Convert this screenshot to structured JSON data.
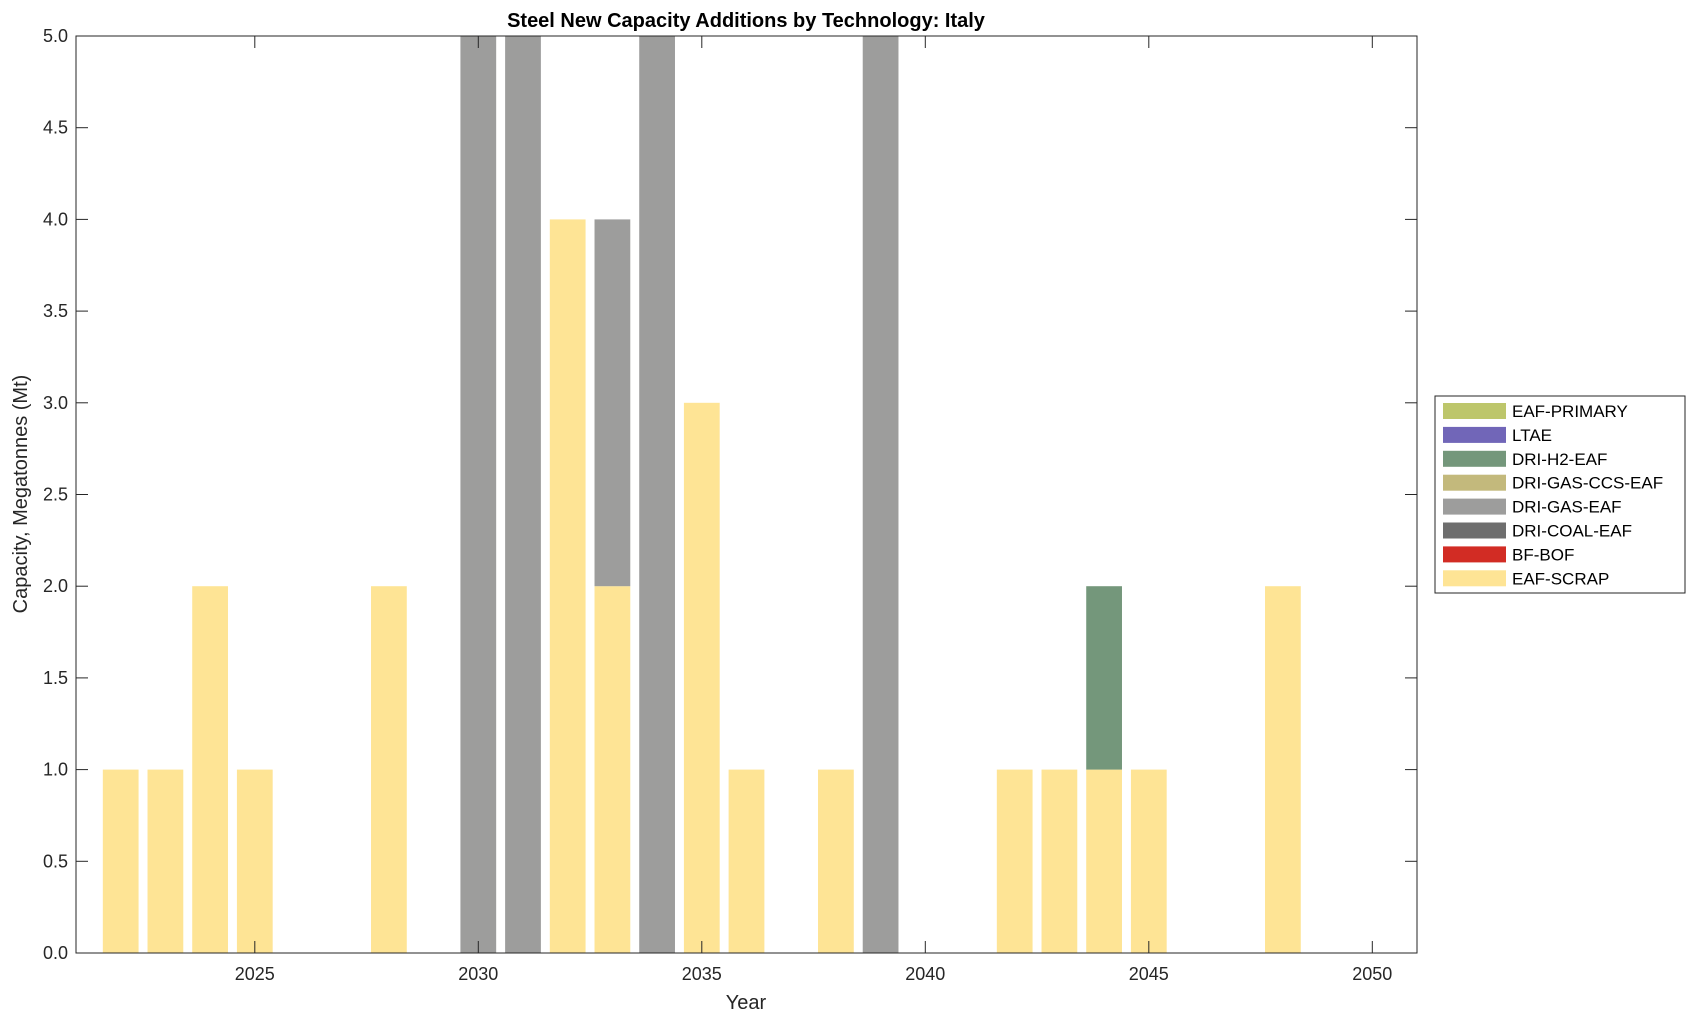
{
  "chart_data": {
    "type": "bar",
    "stacked": true,
    "title": "Steel New Capacity Additions by Technology: Italy",
    "xlabel": "Year",
    "ylabel": "Capacity, Megatonnes (Mt)",
    "xlim": [
      2021,
      2051
    ],
    "ylim": [
      0,
      5
    ],
    "xticks": [
      2025,
      2030,
      2035,
      2040,
      2045,
      2050
    ],
    "yticks": [
      "0.0",
      "0.5",
      "1.0",
      "1.5",
      "2.0",
      "2.5",
      "3.0",
      "3.5",
      "4.0",
      "4.5",
      "5.0"
    ],
    "grid": false,
    "legend_placement": "right-outside",
    "legend": [
      "EAF-PRIMARY",
      "LTAE",
      "DRI-H2-EAF",
      "DRI-GAS-CCS-EAF",
      "DRI-GAS-EAF",
      "DRI-COAL-EAF",
      "BF-BOF",
      "EAF-SCRAP"
    ],
    "stack_order": [
      "EAF-SCRAP",
      "BF-BOF",
      "DRI-COAL-EAF",
      "DRI-GAS-EAF",
      "DRI-GAS-CCS-EAF",
      "DRI-H2-EAF",
      "LTAE",
      "EAF-PRIMARY"
    ],
    "colors": {
      "EAF-PRIMARY": "#bdc66b",
      "LTAE": "#7166b8",
      "DRI-H2-EAF": "#74977b",
      "DRI-GAS-CCS-EAF": "#c3b97c",
      "DRI-GAS-EAF": "#9d9d9c",
      "DRI-COAL-EAF": "#6e6e6e",
      "BF-BOF": "#d22c24",
      "EAF-SCRAP": "#fee495"
    },
    "x": [
      2022,
      2023,
      2024,
      2025,
      2026,
      2027,
      2028,
      2029,
      2030,
      2031,
      2032,
      2033,
      2034,
      2035,
      2036,
      2037,
      2038,
      2039,
      2040,
      2041,
      2042,
      2043,
      2044,
      2045,
      2046,
      2047,
      2048,
      2049,
      2050
    ],
    "series": [
      {
        "name": "EAF-SCRAP",
        "values": [
          1,
          1,
          2,
          1,
          0,
          0,
          2,
          0,
          0,
          0,
          4,
          2,
          0,
          3,
          1,
          0,
          1,
          0,
          0,
          0,
          1,
          1,
          1,
          1,
          0,
          0,
          2,
          0,
          0
        ]
      },
      {
        "name": "BF-BOF",
        "values": [
          0,
          0,
          0,
          0,
          0,
          0,
          0,
          0,
          0,
          0,
          0,
          0,
          0,
          0,
          0,
          0,
          0,
          0,
          0,
          0,
          0,
          0,
          0,
          0,
          0,
          0,
          0,
          0,
          0
        ]
      },
      {
        "name": "DRI-COAL-EAF",
        "values": [
          0,
          0,
          0,
          0,
          0,
          0,
          0,
          0,
          0,
          0,
          0,
          0,
          0,
          0,
          0,
          0,
          0,
          0,
          0,
          0,
          0,
          0,
          0,
          0,
          0,
          0,
          0,
          0,
          0
        ]
      },
      {
        "name": "DRI-GAS-EAF",
        "values": [
          0,
          0,
          0,
          0,
          0,
          0,
          0,
          0,
          5,
          5,
          0,
          2,
          5,
          0,
          0,
          0,
          0,
          5,
          0,
          0,
          0,
          0,
          0,
          0,
          0,
          0,
          0,
          0,
          0
        ]
      },
      {
        "name": "DRI-GAS-CCS-EAF",
        "values": [
          0,
          0,
          0,
          0,
          0,
          0,
          0,
          0,
          0,
          0,
          0,
          0,
          0,
          0,
          0,
          0,
          0,
          0,
          0,
          0,
          0,
          0,
          0,
          0,
          0,
          0,
          0,
          0,
          0
        ]
      },
      {
        "name": "DRI-H2-EAF",
        "values": [
          0,
          0,
          0,
          0,
          0,
          0,
          0,
          0,
          0,
          0,
          0,
          0,
          0,
          0,
          0,
          0,
          0,
          0,
          0,
          0,
          0,
          0,
          1,
          0,
          0,
          0,
          0,
          0,
          0
        ]
      },
      {
        "name": "LTAE",
        "values": [
          0,
          0,
          0,
          0,
          0,
          0,
          0,
          0,
          0,
          0,
          0,
          0,
          0,
          0,
          0,
          0,
          0,
          0,
          0,
          0,
          0,
          0,
          0,
          0,
          0,
          0,
          0,
          0,
          0
        ]
      },
      {
        "name": "EAF-PRIMARY",
        "values": [
          0,
          0,
          0,
          0,
          0,
          0,
          0,
          0,
          0,
          0,
          0,
          0,
          0,
          0,
          0,
          0,
          0,
          0,
          0,
          0,
          0,
          0,
          0,
          0,
          0,
          0,
          0,
          0,
          0
        ]
      }
    ]
  }
}
